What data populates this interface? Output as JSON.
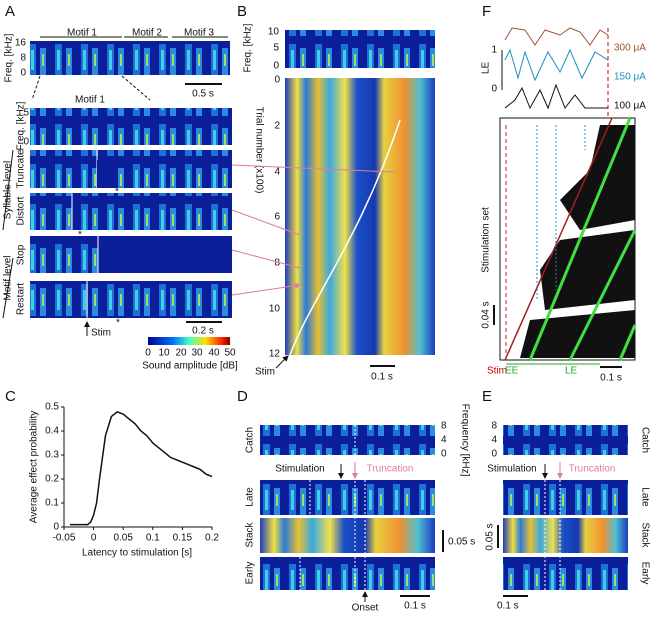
{
  "panel_labels": [
    "A",
    "B",
    "C",
    "D",
    "E",
    "F"
  ],
  "a": {
    "freq_label": "Freq. [kHz]",
    "freq_ticks": [
      "16",
      "8",
      "0"
    ],
    "motifs": [
      "Motif 1",
      "Motif 2",
      "Motif 3"
    ],
    "scale_top": "0.5 s",
    "motif_zoom": "Motif 1",
    "row_freq_ticks": [
      "5",
      "0"
    ],
    "rows": [
      "Freq. [kHz]",
      "Truncate",
      "Distort",
      "Stop",
      "Restart"
    ],
    "syllable_level": "Syllable level",
    "motif_level": "Motif level",
    "stars": [
      "*",
      "*",
      "*"
    ],
    "stim": "Stim",
    "scale_bottom": "0.2 s",
    "colorbar_ticks": [
      "0",
      "10",
      "20",
      "30",
      "40",
      "50"
    ],
    "colorbar_label": "Sound amplitude [dB]"
  },
  "b": {
    "freq_label": "Freq. [kHz]",
    "freq_ticks": [
      "10",
      "5",
      "0"
    ],
    "trial_label": "Trial number (x100)",
    "trial_ticks": [
      "0",
      "2",
      "4",
      "6",
      "8",
      "10",
      "12"
    ],
    "stim": "Stim",
    "scale": "0.1 s"
  },
  "d": {
    "rows": [
      "Catch",
      "Late",
      "Stack",
      "Early"
    ],
    "stimulation": "Stimulation",
    "truncation": "Truncation",
    "onset": "Onset",
    "scale_v": "0.05 s",
    "scale_h": "0.1 s",
    "freq_label": "Frequency [kHz]",
    "freq_ticks": [
      "8",
      "4",
      "0"
    ]
  },
  "e": {
    "rows": [
      "Catch",
      "Late",
      "Stack",
      "Early"
    ],
    "stimulation": "Stimulation",
    "truncation": "Truncation",
    "scale_v": "0.05 s",
    "scale_h": "0.1 s",
    "freq_ticks": [
      "8",
      "4",
      "0"
    ]
  },
  "f": {
    "currents": [
      "300 μA",
      "150 μA",
      "100 μA"
    ],
    "le_label": "LE",
    "le_ticks": [
      "1",
      "0"
    ],
    "set_label": "Stimulation set",
    "scale_v": "0.04 s",
    "stim": "Stim",
    "ee": "EE",
    "le": "LE",
    "scale_h": "0.1 s"
  },
  "chart_data": {
    "type": "line",
    "x_label": "Latency to stimulation [s]",
    "y_label": "Average effect probability",
    "color": "#111111",
    "x": [
      -0.04,
      -0.03,
      -0.02,
      -0.01,
      -0.005,
      0,
      0.005,
      0.01,
      0.02,
      0.03,
      0.04,
      0.05,
      0.06,
      0.07,
      0.08,
      0.09,
      0.1,
      0.11,
      0.12,
      0.13,
      0.14,
      0.15,
      0.16,
      0.17,
      0.18,
      0.19,
      0.2
    ],
    "values": [
      0.01,
      0.01,
      0.01,
      0.01,
      0.02,
      0.05,
      0.1,
      0.2,
      0.38,
      0.46,
      0.48,
      0.47,
      0.45,
      0.43,
      0.4,
      0.38,
      0.35,
      0.33,
      0.31,
      0.29,
      0.28,
      0.27,
      0.26,
      0.25,
      0.24,
      0.22,
      0.21
    ],
    "xlim": [
      -0.05,
      0.2
    ],
    "ylim": [
      0,
      0.5
    ],
    "xticks": [
      -0.05,
      0,
      0.05,
      0.1,
      0.15,
      0.2
    ],
    "yticks": [
      0,
      0.1,
      0.2,
      0.3,
      0.4,
      0.5
    ]
  }
}
